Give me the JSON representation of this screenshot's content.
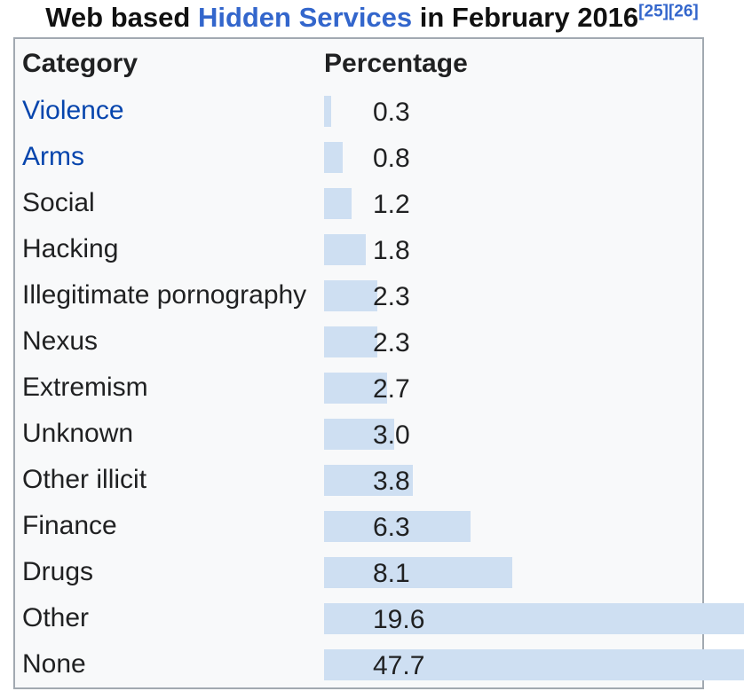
{
  "title": {
    "prefix": "Web based ",
    "link_text": "Hidden Services",
    "suffix": " in February 2016",
    "citations": [
      "[25]",
      "[26]"
    ]
  },
  "table": {
    "headers": {
      "category": "Category",
      "percentage": "Percentage"
    },
    "rows": [
      {
        "label": "Violence",
        "value": "0.3",
        "link": true
      },
      {
        "label": "Arms",
        "value": "0.8",
        "link": true
      },
      {
        "label": "Social",
        "value": "1.2",
        "link": false
      },
      {
        "label": "Hacking",
        "value": "1.8",
        "link": false
      },
      {
        "label": "Illegitimate pornography",
        "value": "2.3",
        "link": false
      },
      {
        "label": "Nexus",
        "value": "2.3",
        "link": false
      },
      {
        "label": "Extremism",
        "value": "2.7",
        "link": false
      },
      {
        "label": "Unknown",
        "value": "3.0",
        "link": false
      },
      {
        "label": "Other illicit",
        "value": "3.8",
        "link": false
      },
      {
        "label": "Finance",
        "value": "6.3",
        "link": false
      },
      {
        "label": "Drugs",
        "value": "8.1",
        "link": false
      },
      {
        "label": "Other",
        "value": "19.6",
        "link": false
      },
      {
        "label": "None",
        "value": "47.7",
        "link": false
      }
    ]
  },
  "colors": {
    "bar": "#cedff2",
    "link": "#0645ad",
    "title_link": "#3366cc",
    "border": "#a2a9b1",
    "table_bg": "#f8f9fa",
    "text": "#202122"
  },
  "chart_data": {
    "type": "bar",
    "orientation": "horizontal",
    "title": "Web based Hidden Services in February 2016",
    "categories": [
      "Violence",
      "Arms",
      "Social",
      "Hacking",
      "Illegitimate pornography",
      "Nexus",
      "Extremism",
      "Unknown",
      "Other illicit",
      "Finance",
      "Drugs",
      "Other",
      "None"
    ],
    "values": [
      0.3,
      0.8,
      1.2,
      1.8,
      2.3,
      2.3,
      2.7,
      3.0,
      3.8,
      6.3,
      8.1,
      19.6,
      47.7
    ],
    "xlabel": "Percentage",
    "ylabel": "Category",
    "xlim": [
      0,
      47.7
    ],
    "grid": false,
    "legend": false,
    "bar_color": "#cedff2",
    "annotations": "value labels printed at fixed offset overlapping bars; bars for Other and None overflow the table's right border"
  }
}
